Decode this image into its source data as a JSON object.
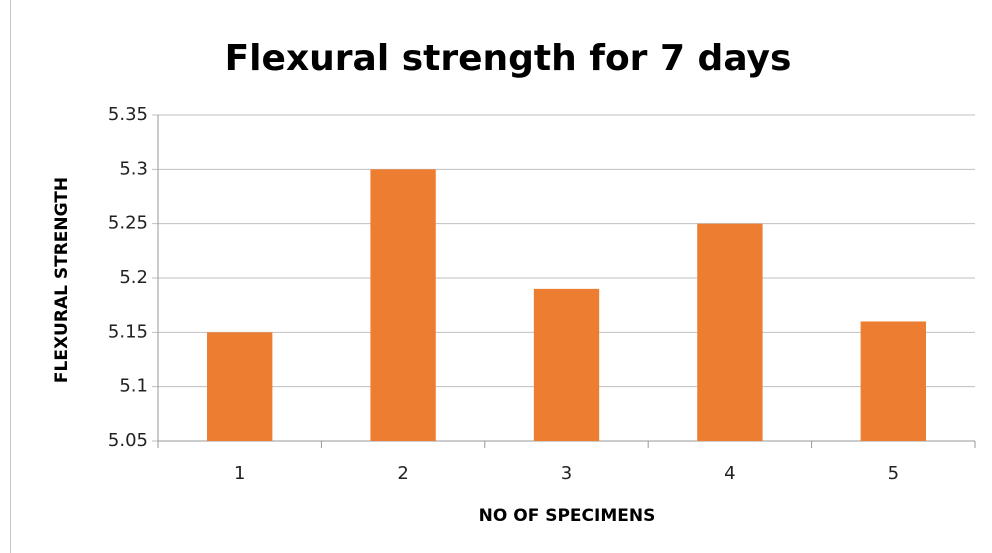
{
  "chart_data": {
    "type": "bar",
    "title": "Flexural strength for 7 days",
    "x_label": "NO OF SPECIMENS",
    "y_label": "FLEXURAL STRENGTH",
    "categories": [
      "1",
      "2",
      "3",
      "4",
      "5"
    ],
    "values": [
      5.15,
      5.3,
      5.19,
      5.25,
      5.16
    ],
    "color": "#ed7d31",
    "ylim": [
      5.05,
      5.35
    ],
    "yticks": [
      5.05,
      5.1,
      5.15,
      5.2,
      5.25,
      5.3,
      5.35
    ],
    "grid": true
  }
}
